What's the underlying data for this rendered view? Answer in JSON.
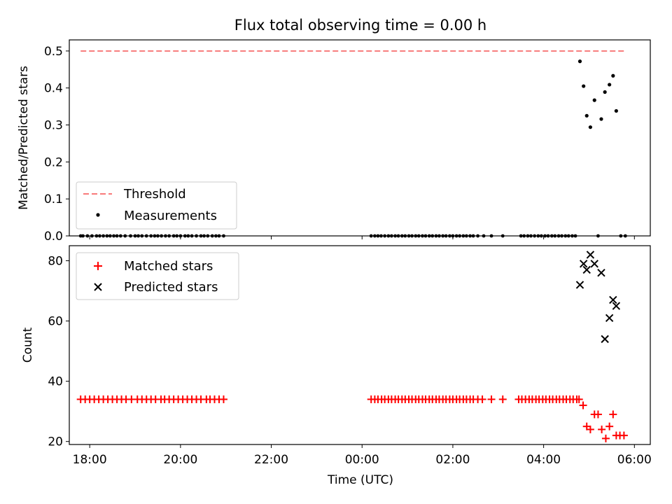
{
  "figure": {
    "title": "Flux total observing time = 0.00 h",
    "xlabel": "Time (UTC)"
  },
  "colors": {
    "threshold": "#f87a7a",
    "measurements": "#000000",
    "matched": "#ff0000",
    "predicted": "#000000"
  },
  "chart_data": [
    {
      "type": "scatter",
      "ylabel": "Matched/Predicted stars",
      "xlim": [
        -6.45,
        6.35
      ],
      "ylim": [
        0,
        0.53
      ],
      "yticks": [
        0.0,
        0.1,
        0.2,
        0.3,
        0.4,
        0.5
      ],
      "ytick_labels": [
        "0.0",
        "0.1",
        "0.2",
        "0.3",
        "0.4",
        "0.5"
      ],
      "xticks": [
        -6,
        -4,
        -2,
        0,
        2,
        4,
        6
      ],
      "legend_position": "lower-left",
      "legend": [
        {
          "label": "Threshold",
          "style": "dashed-line"
        },
        {
          "label": "Measurements",
          "style": "dot"
        }
      ],
      "threshold": {
        "name": "Threshold",
        "value": 0.5,
        "x_range": [
          -6.2,
          5.8
        ]
      },
      "measurements": {
        "name": "Measurements",
        "zero_points_x": [
          -6.2,
          -6.15,
          -6.05,
          -5.95,
          -5.85,
          -5.78,
          -5.7,
          -5.62,
          -5.55,
          -5.47,
          -5.4,
          -5.32,
          -5.22,
          -5.1,
          -5.0,
          -4.93,
          -4.85,
          -4.75,
          -4.65,
          -4.57,
          -4.5,
          -4.42,
          -4.33,
          -4.25,
          -4.15,
          -4.08,
          -4.0,
          -3.9,
          -3.83,
          -3.75,
          -3.65,
          -3.55,
          -3.48,
          -3.4,
          -3.3,
          -3.22,
          -3.15,
          -3.05,
          0.2,
          0.28,
          0.35,
          0.42,
          0.5,
          0.58,
          0.65,
          0.73,
          0.8,
          0.88,
          0.95,
          1.03,
          1.1,
          1.18,
          1.25,
          1.33,
          1.4,
          1.48,
          1.55,
          1.63,
          1.7,
          1.78,
          1.85,
          1.93,
          2.0,
          2.08,
          2.15,
          2.23,
          2.3,
          2.38,
          2.45,
          2.55,
          2.68,
          2.85,
          3.1,
          3.5,
          3.57,
          3.65,
          3.72,
          3.8,
          3.88,
          3.95,
          4.03,
          4.1,
          4.18,
          4.25,
          4.33,
          4.4,
          4.48,
          4.55,
          4.63,
          4.7,
          5.2,
          5.7,
          5.8
        ],
        "points": [
          {
            "x": 4.8,
            "y": 0.472
          },
          {
            "x": 4.88,
            "y": 0.405
          },
          {
            "x": 4.95,
            "y": 0.325
          },
          {
            "x": 5.03,
            "y": 0.294
          },
          {
            "x": 5.12,
            "y": 0.367
          },
          {
            "x": 5.27,
            "y": 0.316
          },
          {
            "x": 5.35,
            "y": 0.389
          },
          {
            "x": 5.45,
            "y": 0.409
          },
          {
            "x": 5.53,
            "y": 0.433
          },
          {
            "x": 5.6,
            "y": 0.338
          }
        ]
      }
    },
    {
      "type": "scatter",
      "ylabel": "Count",
      "xlim": [
        -6.45,
        6.35
      ],
      "ylim": [
        19,
        85
      ],
      "yticks": [
        20,
        40,
        60,
        80
      ],
      "ytick_labels": [
        "20",
        "40",
        "60",
        "80"
      ],
      "xticks": [
        -6,
        -4,
        -2,
        0,
        2,
        4,
        6
      ],
      "xtick_labels": [
        "18:00",
        "20:00",
        "22:00",
        "00:00",
        "02:00",
        "04:00",
        "06:00"
      ],
      "legend_position": "upper-left",
      "legend": [
        {
          "label": "Matched stars",
          "style": "plus"
        },
        {
          "label": "Predicted stars",
          "style": "x"
        }
      ],
      "matched_constant": {
        "name": "Matched stars",
        "y": 34,
        "x": [
          -6.2,
          -6.1,
          -6.0,
          -5.9,
          -5.8,
          -5.7,
          -5.6,
          -5.5,
          -5.4,
          -5.3,
          -5.2,
          -5.08,
          -4.95,
          -4.85,
          -4.75,
          -4.65,
          -4.55,
          -4.43,
          -4.35,
          -4.25,
          -4.15,
          -4.05,
          -3.95,
          -3.85,
          -3.75,
          -3.65,
          -3.55,
          -3.43,
          -3.35,
          -3.25,
          -3.15,
          -3.05,
          0.2,
          0.28,
          0.35,
          0.43,
          0.5,
          0.58,
          0.65,
          0.73,
          0.8,
          0.88,
          0.95,
          1.03,
          1.1,
          1.18,
          1.25,
          1.33,
          1.4,
          1.48,
          1.55,
          1.63,
          1.7,
          1.78,
          1.85,
          1.93,
          2.0,
          2.08,
          2.15,
          2.23,
          2.3,
          2.38,
          2.45,
          2.55,
          2.65,
          2.85,
          3.1,
          3.45,
          3.52,
          3.6,
          3.68,
          3.75,
          3.83,
          3.9,
          3.98,
          4.05,
          4.13,
          4.2,
          4.28,
          4.35,
          4.43,
          4.5,
          4.58,
          4.65,
          4.73,
          4.78
        ]
      },
      "matched_points": [
        {
          "x": 4.87,
          "y": 32
        },
        {
          "x": 4.95,
          "y": 25
        },
        {
          "x": 5.03,
          "y": 24
        },
        {
          "x": 5.12,
          "y": 29
        },
        {
          "x": 5.2,
          "y": 29
        },
        {
          "x": 5.28,
          "y": 24
        },
        {
          "x": 5.37,
          "y": 21
        },
        {
          "x": 5.45,
          "y": 25
        },
        {
          "x": 5.53,
          "y": 29
        },
        {
          "x": 5.6,
          "y": 22
        },
        {
          "x": 5.68,
          "y": 22
        },
        {
          "x": 5.77,
          "y": 22
        }
      ],
      "predicted_points": [
        {
          "x": 4.8,
          "y": 72
        },
        {
          "x": 4.88,
          "y": 79
        },
        {
          "x": 4.95,
          "y": 77
        },
        {
          "x": 5.03,
          "y": 82
        },
        {
          "x": 5.12,
          "y": 79
        },
        {
          "x": 5.27,
          "y": 76
        },
        {
          "x": 5.35,
          "y": 54
        },
        {
          "x": 5.45,
          "y": 61
        },
        {
          "x": 5.53,
          "y": 67
        },
        {
          "x": 5.6,
          "y": 65
        }
      ]
    }
  ]
}
